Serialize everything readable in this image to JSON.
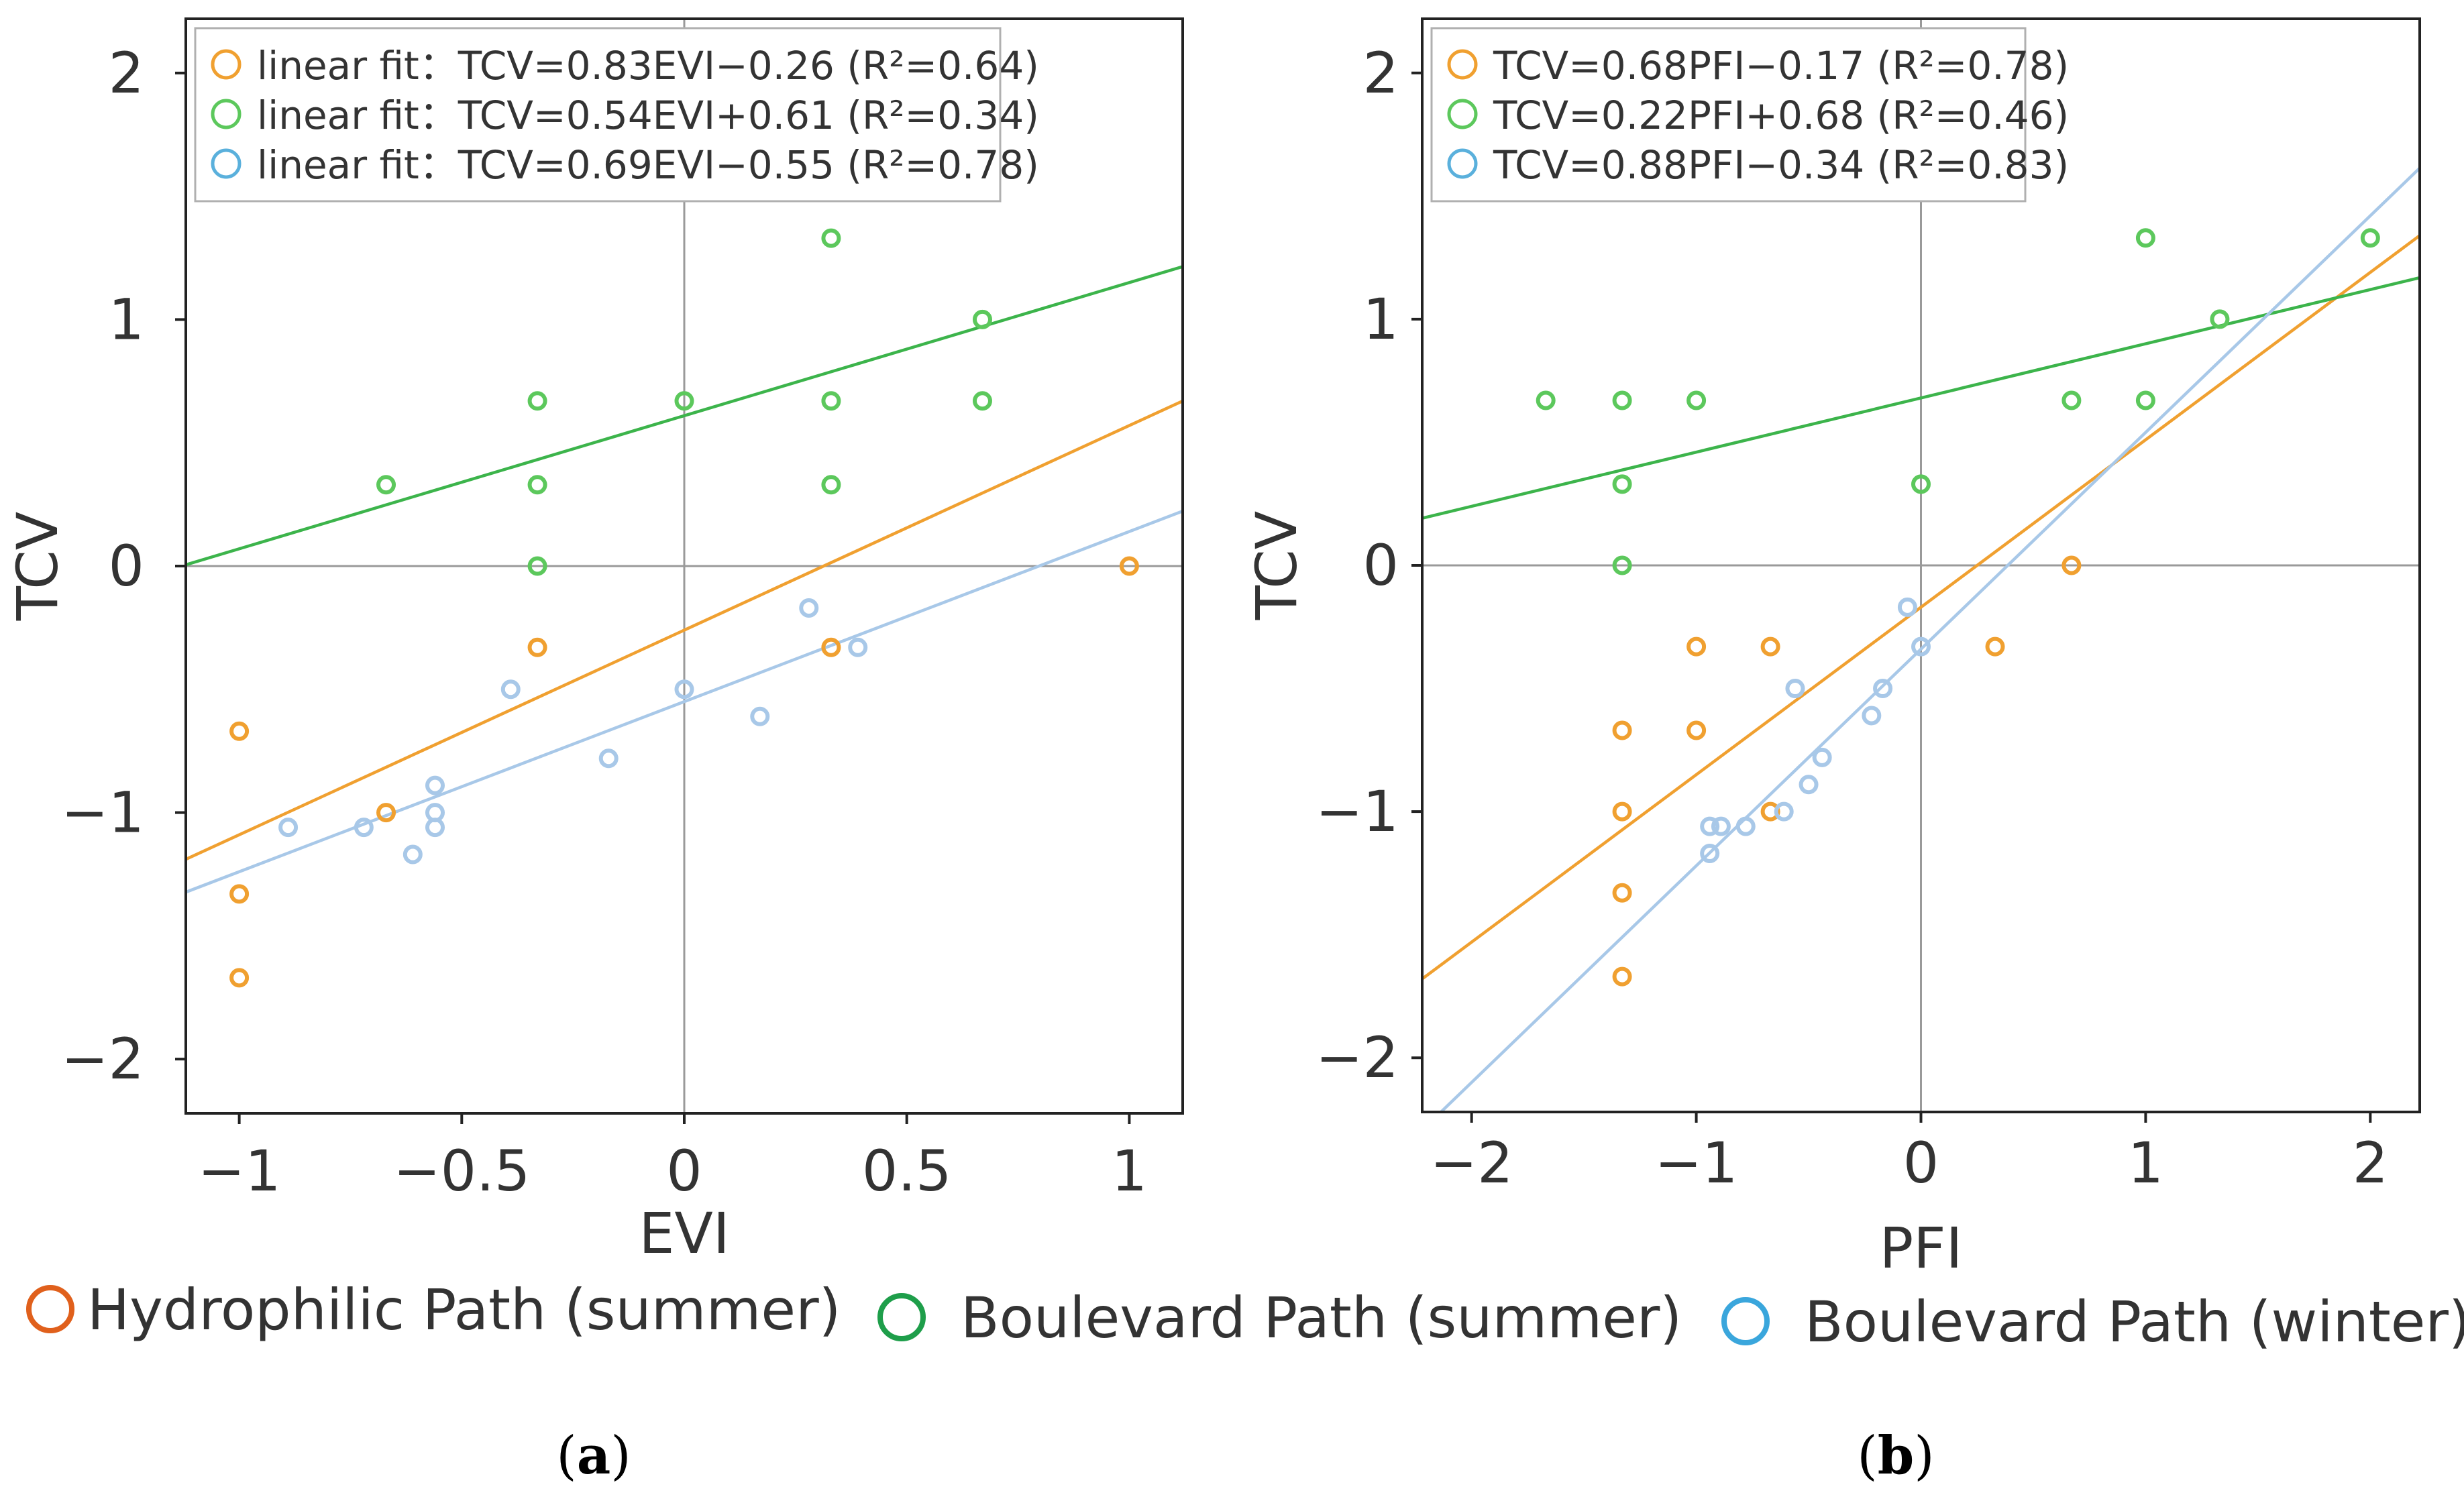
{
  "chart_data": [
    {
      "panel": "a",
      "type": "scatter",
      "title": "",
      "panel_label": {
        "open": "(",
        "letter": "a",
        "close": ")"
      },
      "xlabel": "EVI",
      "ylabel": "TCV",
      "xlim": [
        -1.12,
        1.12
      ],
      "ylim": [
        -2.22,
        2.22
      ],
      "xticks": [
        -1,
        -0.5,
        0,
        0.5,
        1
      ],
      "xtick_labels": [
        "−1",
        "−0.5",
        "0",
        "0.5",
        "1"
      ],
      "yticks": [
        -2,
        -1,
        0,
        1,
        2
      ],
      "ytick_labels": [
        "−2",
        "−1",
        "0",
        "1",
        "2"
      ],
      "zero_lines": true,
      "legend_position": "top-left",
      "series": [
        {
          "name": "Hydrophilic Path (summer)",
          "color": "#f0a030",
          "legend_label": "linear fit：TCV=0.83EVI−0.26 (R²=0.64)",
          "fit": {
            "slope": 0.83,
            "intercept": -0.26
          },
          "points": [
            [
              -1,
              -0.67
            ],
            [
              -1,
              -1.33
            ],
            [
              -1,
              -1.67
            ],
            [
              -0.67,
              -1.0
            ],
            [
              -0.33,
              -0.33
            ],
            [
              0.33,
              -0.33
            ],
            [
              1,
              0
            ]
          ]
        },
        {
          "name": "Boulevard Path (summer)",
          "color": "#5cc85c",
          "line_color": "#3cb44b",
          "legend_label": "linear fit：TCV=0.54EVI+0.61 (R²=0.34)",
          "fit": {
            "slope": 0.54,
            "intercept": 0.61
          },
          "points": [
            [
              -0.67,
              0.33
            ],
            [
              -0.33,
              0.67
            ],
            [
              -0.33,
              0.33
            ],
            [
              -0.33,
              0
            ],
            [
              0,
              0.67
            ],
            [
              0.33,
              1.33
            ],
            [
              0.33,
              0.67
            ],
            [
              0.33,
              0.33
            ],
            [
              0.67,
              1.0
            ],
            [
              0.67,
              0.67
            ]
          ]
        },
        {
          "name": "Boulevard Path (winter)",
          "color": "#a8c8e8",
          "legend_color": "#5ab0dc",
          "legend_label": "linear fit：TCV=0.69EVI−0.55 (R²=0.78)",
          "fit": {
            "slope": 0.69,
            "intercept": -0.55
          },
          "points": [
            [
              -0.89,
              -1.06
            ],
            [
              -0.72,
              -1.06
            ],
            [
              -0.61,
              -1.17
            ],
            [
              -0.56,
              -0.89
            ],
            [
              -0.56,
              -1.0
            ],
            [
              -0.56,
              -1.06
            ],
            [
              -0.39,
              -0.5
            ],
            [
              -0.17,
              -0.78
            ],
            [
              0,
              -0.5
            ],
            [
              0.17,
              -0.61
            ],
            [
              0.28,
              -0.17
            ],
            [
              0.39,
              -0.33
            ]
          ]
        }
      ]
    },
    {
      "panel": "b",
      "type": "scatter",
      "title": "",
      "panel_label": {
        "open": "(",
        "letter": "b",
        "close": ")"
      },
      "xlabel": "PFI",
      "ylabel": "TCV",
      "xlim": [
        -2.22,
        2.22
      ],
      "ylim": [
        -2.22,
        2.22
      ],
      "xticks": [
        -2,
        -1,
        0,
        1,
        2
      ],
      "xtick_labels": [
        "−2",
        "−1",
        "0",
        "1",
        "2"
      ],
      "yticks": [
        -2,
        -1,
        0,
        1,
        2
      ],
      "ytick_labels": [
        "−2",
        "−1",
        "0",
        "1",
        "2"
      ],
      "zero_lines": true,
      "legend_position": "top-left",
      "series": [
        {
          "name": "Hydrophilic Path (summer)",
          "color": "#f0a030",
          "legend_label": "TCV=0.68PFI−0.17 (R²=0.78)",
          "fit": {
            "slope": 0.68,
            "intercept": -0.17
          },
          "points": [
            [
              -1.33,
              -0.67
            ],
            [
              -1.33,
              -1.0
            ],
            [
              -1.33,
              -1.33
            ],
            [
              -1.33,
              -1.67
            ],
            [
              -1,
              -0.33
            ],
            [
              -1,
              -0.67
            ],
            [
              -0.67,
              -0.33
            ],
            [
              -0.67,
              -1.0
            ],
            [
              0.33,
              -0.33
            ],
            [
              0.67,
              0
            ]
          ]
        },
        {
          "name": "Boulevard Path (summer)",
          "color": "#5cc85c",
          "line_color": "#3cb44b",
          "legend_label": "TCV=0.22PFI+0.68 (R²=0.46)",
          "fit": {
            "slope": 0.22,
            "intercept": 0.68
          },
          "points": [
            [
              -1.67,
              0.67
            ],
            [
              -1.33,
              0.67
            ],
            [
              -1.33,
              0.33
            ],
            [
              -1.33,
              0
            ],
            [
              -1,
              0.67
            ],
            [
              0,
              0.33
            ],
            [
              0.67,
              0.67
            ],
            [
              1,
              1.33
            ],
            [
              1,
              0.67
            ],
            [
              1.33,
              1.0
            ],
            [
              2,
              1.33
            ]
          ]
        },
        {
          "name": "Boulevard Path (winter)",
          "color": "#a8c8e8",
          "legend_color": "#5ab0dc",
          "legend_label": "TCV=0.88PFI−0.34 (R²=0.83)",
          "fit": {
            "slope": 0.88,
            "intercept": -0.34
          },
          "points": [
            [
              -0.94,
              -1.06
            ],
            [
              -0.89,
              -1.06
            ],
            [
              -0.94,
              -1.17
            ],
            [
              -0.78,
              -1.06
            ],
            [
              -0.61,
              -1.0
            ],
            [
              -0.56,
              -0.5
            ],
            [
              -0.5,
              -0.89
            ],
            [
              -0.44,
              -0.78
            ],
            [
              -0.22,
              -0.61
            ],
            [
              -0.17,
              -0.5
            ],
            [
              -0.06,
              -0.17
            ],
            [
              0,
              -0.33
            ]
          ]
        }
      ]
    }
  ],
  "bottom_legend": [
    {
      "label": "Hydrophilic Path (summer)",
      "color": "#e0601c"
    },
    {
      "label": "Boulevard Path (summer)",
      "color": "#1e9e4a"
    },
    {
      "label": "Boulevard Path (winter)",
      "color": "#3aa6dc"
    }
  ]
}
